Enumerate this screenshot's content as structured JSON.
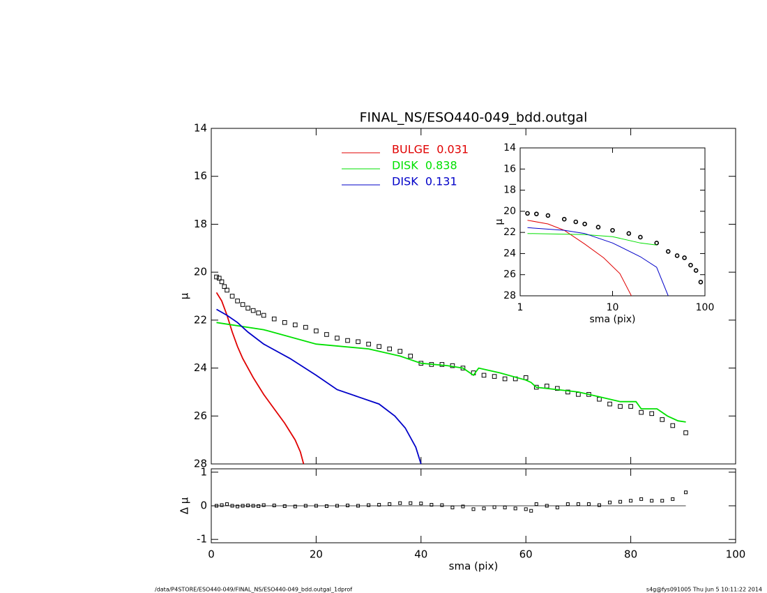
{
  "chart_data": [
    {
      "type": "line",
      "title": "FINAL_NS/ESO440-049_bdd.outgal",
      "ylabel": "μ",
      "xlim": [
        0,
        100
      ],
      "xticks": [
        0,
        20,
        40,
        60,
        80,
        100
      ],
      "ylim": [
        28,
        14
      ],
      "yticks": [
        14,
        16,
        18,
        20,
        22,
        24,
        26,
        28
      ],
      "series": [
        {
          "mark": "square",
          "color": "#000000",
          "x": [
            1,
            1.5,
            2,
            2.5,
            3,
            4,
            5,
            6,
            7,
            8,
            9,
            10,
            12,
            14,
            16,
            18,
            20,
            22,
            24,
            26,
            28,
            30,
            32,
            34,
            36,
            38,
            40,
            42,
            44,
            46,
            48,
            50,
            52,
            54,
            56,
            58,
            60,
            62,
            64,
            66,
            68,
            70,
            72,
            74,
            76,
            78,
            80,
            82,
            84,
            86,
            88,
            90.5
          ],
          "values": [
            20.2,
            20.25,
            20.4,
            20.6,
            20.75,
            21.0,
            21.2,
            21.35,
            21.5,
            21.6,
            21.7,
            21.8,
            21.95,
            22.1,
            22.2,
            22.3,
            22.45,
            22.6,
            22.75,
            22.85,
            22.9,
            23.0,
            23.1,
            23.2,
            23.3,
            23.5,
            23.8,
            23.85,
            23.85,
            23.9,
            24.0,
            24.2,
            24.3,
            24.35,
            24.45,
            24.45,
            24.4,
            24.8,
            24.75,
            24.85,
            25.0,
            25.1,
            25.1,
            25.3,
            25.5,
            25.6,
            25.6,
            25.85,
            25.9,
            26.15,
            26.4,
            26.7
          ]
        },
        {
          "name": "BULGE  0.031",
          "mark": "line",
          "color": "#e00000",
          "x": [
            1,
            2,
            3,
            4,
            5,
            6,
            8,
            10,
            12,
            14,
            16,
            17,
            17.6
          ],
          "values": [
            20.85,
            21.2,
            21.8,
            22.5,
            23.1,
            23.6,
            24.4,
            25.1,
            25.7,
            26.3,
            27.0,
            27.5,
            28.0
          ]
        },
        {
          "name": "DISK  0.838",
          "mark": "line",
          "color": "#00e000",
          "x": [
            1,
            10,
            20,
            30,
            36,
            40,
            45,
            48,
            50,
            51,
            55,
            60,
            61,
            62,
            66,
            70,
            74,
            78,
            81,
            82,
            85,
            87,
            89,
            90.5
          ],
          "values": [
            22.1,
            22.4,
            23.0,
            23.2,
            23.5,
            23.8,
            23.9,
            24.0,
            24.3,
            24.0,
            24.2,
            24.5,
            24.6,
            24.8,
            24.9,
            25.0,
            25.2,
            25.4,
            25.4,
            25.7,
            25.7,
            26.0,
            26.2,
            26.25
          ]
        },
        {
          "name": "DISK  0.131",
          "mark": "line",
          "color": "#0000c8",
          "x": [
            1,
            3,
            5,
            7,
            10,
            15,
            20,
            24,
            28,
            32,
            35,
            37,
            39,
            40
          ],
          "values": [
            21.55,
            21.8,
            22.1,
            22.5,
            23.0,
            23.6,
            24.3,
            24.9,
            25.2,
            25.5,
            26.0,
            26.5,
            27.3,
            28.0
          ]
        }
      ]
    },
    {
      "type": "scatter",
      "ylabel": "Δ μ",
      "xlabel": "sma (pix)",
      "xlim": [
        0,
        100
      ],
      "xticks": [
        0,
        20,
        40,
        60,
        80,
        100
      ],
      "ylim": [
        -1.1,
        1.1
      ],
      "yticks": [
        -1,
        0,
        1
      ],
      "series": [
        {
          "mark": "square",
          "color": "#000000",
          "x": [
            1,
            2,
            3,
            4,
            5,
            6,
            7,
            8,
            9,
            10,
            12,
            14,
            16,
            18,
            20,
            22,
            24,
            26,
            28,
            30,
            32,
            34,
            36,
            38,
            40,
            42,
            44,
            46,
            48,
            50,
            52,
            54,
            56,
            58,
            60,
            61,
            62,
            64,
            66,
            68,
            70,
            72,
            74,
            76,
            78,
            80,
            82,
            84,
            86,
            88,
            90.5
          ],
          "values": [
            0,
            0.02,
            0.05,
            0,
            -0.02,
            0,
            0.01,
            0,
            -0.01,
            0.02,
            0.01,
            -0.01,
            -0.02,
            0,
            0,
            -0.01,
            0,
            0.01,
            0,
            0.02,
            0.03,
            0.05,
            0.08,
            0.08,
            0.07,
            0.03,
            0.02,
            -0.05,
            -0.02,
            -0.1,
            -0.08,
            -0.04,
            -0.05,
            -0.08,
            -0.1,
            -0.15,
            0.05,
            0,
            -0.05,
            0.05,
            0.05,
            0.05,
            0.02,
            0.1,
            0.12,
            0.15,
            0.2,
            0.15,
            0.15,
            0.2,
            0.4
          ]
        }
      ]
    },
    {
      "type": "line",
      "ylabel": "μ",
      "xlabel": "sma (pix)",
      "xlog": true,
      "xlim": [
        1,
        100
      ],
      "xticks": [
        1,
        10,
        100
      ],
      "ylim": [
        28,
        14
      ],
      "yticks": [
        14,
        16,
        18,
        20,
        22,
        24,
        26,
        28
      ],
      "series": [
        {
          "mark": "circle",
          "color": "#000000",
          "x": [
            1.2,
            1.5,
            2,
            3,
            4,
            5,
            7,
            10,
            15,
            20,
            30,
            40,
            50,
            60,
            70,
            80,
            90
          ],
          "values": [
            20.2,
            20.25,
            20.4,
            20.75,
            21.0,
            21.2,
            21.5,
            21.8,
            22.1,
            22.45,
            23.0,
            23.8,
            24.2,
            24.4,
            25.1,
            25.6,
            26.7
          ]
        },
        {
          "mark": "line",
          "color": "#e00000",
          "x": [
            1.2,
            2,
            3,
            5,
            8,
            12,
            16
          ],
          "values": [
            20.85,
            21.2,
            21.8,
            23.1,
            24.4,
            25.9,
            28
          ]
        },
        {
          "mark": "line",
          "color": "#00e000",
          "x": [
            1.2,
            5,
            10,
            20,
            30
          ],
          "values": [
            22.1,
            22.2,
            22.4,
            23.0,
            23.2
          ]
        },
        {
          "mark": "line",
          "color": "#0000c8",
          "x": [
            1.2,
            3,
            5,
            10,
            20,
            30,
            40
          ],
          "values": [
            21.55,
            21.8,
            22.1,
            23.0,
            24.3,
            25.3,
            28
          ]
        }
      ]
    }
  ],
  "footer": {
    "left": "/data/P4STORE/ESO440-049/FINAL_NS/ESO440-049_bdd.outgal_1dprof",
    "right": "s4g@fys091005  Thu Jun  5 10:11:22 2014"
  }
}
